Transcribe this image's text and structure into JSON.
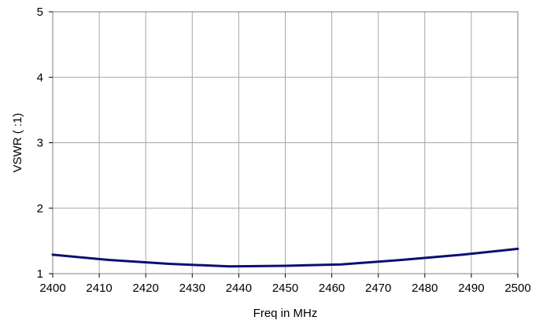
{
  "chart_data": {
    "type": "line",
    "title": "",
    "xlabel": "Freq in MHz",
    "ylabel": "VSWR ( :1)",
    "xlim": [
      2400,
      2500
    ],
    "ylim": [
      1,
      5
    ],
    "x_ticks": [
      2400,
      2410,
      2420,
      2430,
      2440,
      2450,
      2460,
      2470,
      2480,
      2490,
      2500
    ],
    "y_ticks": [
      1,
      2,
      3,
      4,
      5
    ],
    "grid": true,
    "legend": "none",
    "series": [
      {
        "color": "#0d0f73",
        "x": [
          2400,
          2412,
          2425,
          2438,
          2450,
          2462,
          2475,
          2488,
          2500
        ],
        "y": [
          1.29,
          1.21,
          1.15,
          1.11,
          1.12,
          1.14,
          1.21,
          1.29,
          1.38
        ]
      }
    ]
  }
}
